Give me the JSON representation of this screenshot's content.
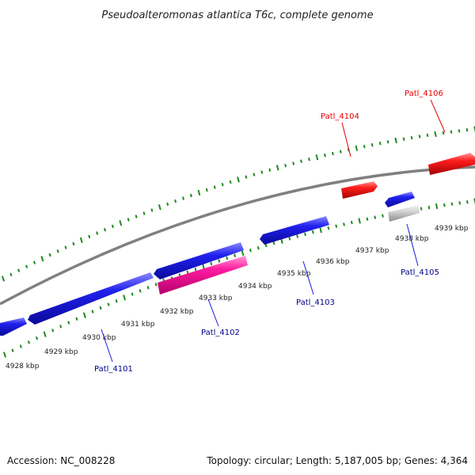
{
  "title": "Pseudoalteromonas atlantica T6c, complete genome",
  "footer": {
    "accession": "Accession: NC_008228",
    "summary": "Topology: circular; Length: 5,187,005 bp; Genes: 4,364"
  },
  "colors": {
    "forward_gene": "#1a1ae6",
    "reverse_gene": "#ff1a1a",
    "pink_gene": "#ff1a9e",
    "gray_gene": "#cfcfcf",
    "backbone": "#808080",
    "tick": "#1f8a1f",
    "forward_label": "#00008b",
    "reverse_label": "#e60000"
  },
  "kbp_labels": [
    "4928 kbp",
    "4929 kbp",
    "4930 kbp",
    "4931 kbp",
    "4932 kbp",
    "4933 kbp",
    "4934 kbp",
    "4935 kbp",
    "4936 kbp",
    "4937 kbp",
    "4938 kbp",
    "4939 kbp"
  ],
  "genes": [
    {
      "name": "Patl_4101",
      "color": "blue"
    },
    {
      "name": "Patl_4102",
      "color": "pink"
    },
    {
      "name": "Patl_4103",
      "color": "blue"
    },
    {
      "name": "Patl_4104",
      "color": "red"
    },
    {
      "name": "Patl_4105",
      "color": "blue"
    },
    {
      "name": "Patl_4106",
      "color": "red"
    }
  ]
}
